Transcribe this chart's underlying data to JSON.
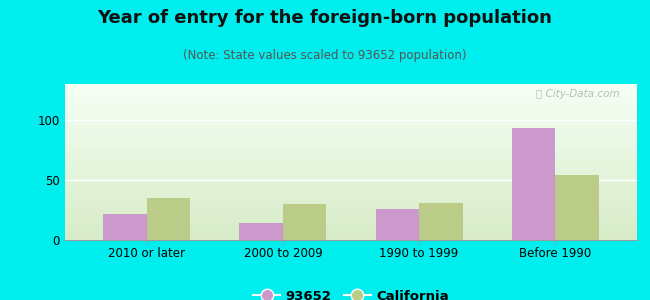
{
  "title": "Year of entry for the foreign-born population",
  "subtitle": "(Note: State values scaled to 93652 population)",
  "categories": [
    "2010 or later",
    "2000 to 2009",
    "1990 to 1999",
    "Before 1990"
  ],
  "values_93652": [
    22,
    14,
    26,
    93
  ],
  "values_california": [
    35,
    30,
    31,
    54
  ],
  "color_93652": "#cc99cc",
  "color_california": "#bbcc88",
  "background_outer": "#00eeee",
  "background_inner_top": "#f5fff5",
  "background_inner_bottom": "#d8ecc8",
  "ylim": [
    0,
    130
  ],
  "yticks": [
    0,
    50,
    100
  ],
  "bar_width": 0.32,
  "legend_label_1": "93652",
  "legend_label_2": "California",
  "title_fontsize": 13,
  "subtitle_fontsize": 8.5,
  "tick_fontsize": 8.5,
  "legend_fontsize": 9.5
}
